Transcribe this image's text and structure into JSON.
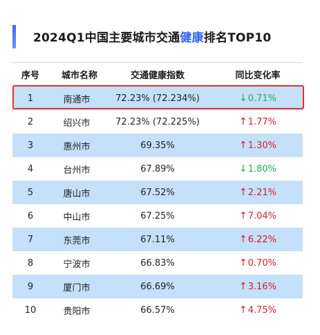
{
  "title": {
    "prefix": "2024Q1中国主要城市交通",
    "highlight": "健康",
    "suffix": "排名TOP10"
  },
  "headers": {
    "rank": "序号",
    "city": "城市名称",
    "index": "交通健康指数",
    "yoy": "同比变化率"
  },
  "colors": {
    "accent": "#2f66f0",
    "row_shade": "#c5e0fb",
    "up": "#d11f2a",
    "down": "#1faa54",
    "highlight_border": "#e8312b"
  },
  "rows": [
    {
      "rank": "1",
      "city": "南通市",
      "index": "72.23% (72.234%)",
      "arrow": "↓",
      "change": "0.71%",
      "direction": "down"
    },
    {
      "rank": "2",
      "city": "绍兴市",
      "index": "72.23% (72.225%)",
      "arrow": "↑",
      "change": "1.77%",
      "direction": "up"
    },
    {
      "rank": "3",
      "city": "惠州市",
      "index": "69.35%",
      "arrow": "↑",
      "change": "1.30%",
      "direction": "up"
    },
    {
      "rank": "4",
      "city": "台州市",
      "index": "67.89%",
      "arrow": "↓",
      "change": "1.80%",
      "direction": "down"
    },
    {
      "rank": "5",
      "city": "唐山市",
      "index": "67.52%",
      "arrow": "↑",
      "change": "2.21%",
      "direction": "up"
    },
    {
      "rank": "6",
      "city": "中山市",
      "index": "67.25%",
      "arrow": "↑",
      "change": "7.04%",
      "direction": "up"
    },
    {
      "rank": "7",
      "city": "东莞市",
      "index": "67.11%",
      "arrow": "↑",
      "change": "6.22%",
      "direction": "up"
    },
    {
      "rank": "8",
      "city": "宁波市",
      "index": "66.83%",
      "arrow": "↑",
      "change": "0.70%",
      "direction": "up"
    },
    {
      "rank": "9",
      "city": "厦门市",
      "index": "66.69%",
      "arrow": "↑",
      "change": "3.16%",
      "direction": "up"
    },
    {
      "rank": "10",
      "city": "贵阳市",
      "index": "66.57%",
      "arrow": "↑",
      "change": "4.75%",
      "direction": "up"
    }
  ]
}
